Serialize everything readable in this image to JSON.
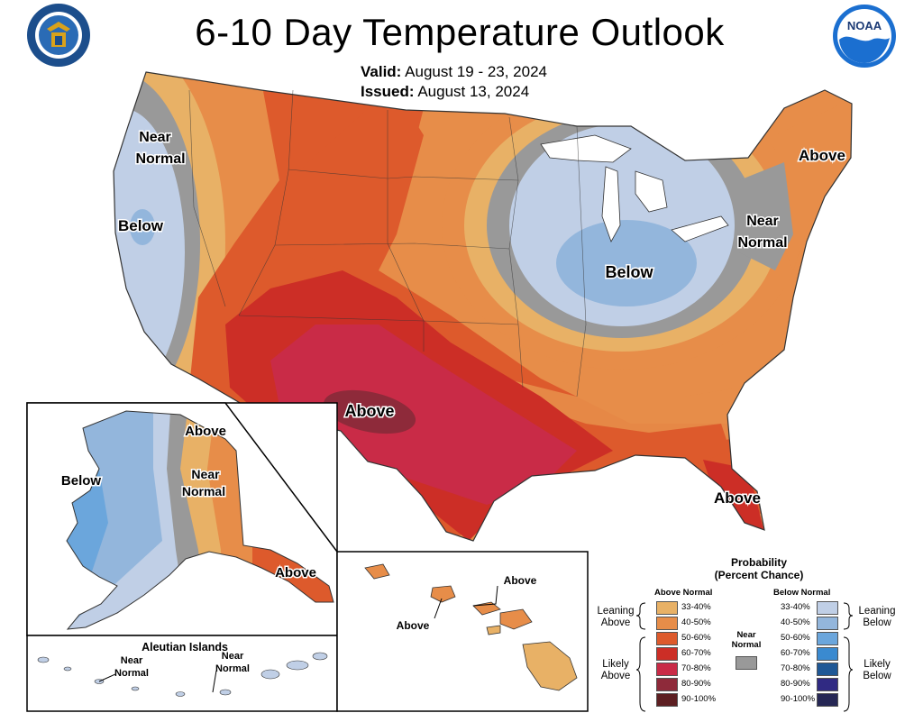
{
  "title": "6-10 Day Temperature Outlook",
  "valid_label": "Valid:",
  "valid_value": "August 19 - 23, 2024",
  "issued_label": "Issued:",
  "issued_value": "August 13, 2024",
  "logos": {
    "left": "doc-seal",
    "right": "noaa-logo",
    "left_text": "DEPARTMENT OF COMMERCE · UNITED STATES OF AMERICA",
    "right_text": "NOAA"
  },
  "map_labels": {
    "conus_near_normal_west": [
      "Near",
      "Normal"
    ],
    "conus_below_west": "Below",
    "conus_below_midwest": "Below",
    "conus_above_northeast": "Above",
    "conus_near_normal_east": [
      "Near",
      "Normal"
    ],
    "conus_above_southwest": "Above",
    "conus_above_florida": "Above",
    "alaska_below": "Below",
    "alaska_above_north": "Above",
    "alaska_near_normal": [
      "Near",
      "Normal"
    ],
    "alaska_above_south": "Above",
    "aleutian_title": "Aleutian Islands",
    "aleutian_near_normal_1": [
      "Near",
      "Normal"
    ],
    "aleutian_near_normal_2": [
      "Near",
      "Normal"
    ],
    "hawaii_above_1": "Above",
    "hawaii_above_2": "Above"
  },
  "legend": {
    "title": "Probability",
    "subtitle": "(Percent Chance)",
    "above_header": "Above Normal",
    "below_header": "Below Normal",
    "near_normal_label": [
      "Near",
      "Normal"
    ],
    "leaning_above": [
      "Leaning",
      "Above"
    ],
    "likely_above": [
      "Likely",
      "Above"
    ],
    "leaning_below": [
      "Leaning",
      "Below"
    ],
    "likely_below": [
      "Likely",
      "Below"
    ],
    "near_normal_color": "#999999",
    "above": [
      {
        "range": "33-40%",
        "color": "#e8b166"
      },
      {
        "range": "40-50%",
        "color": "#e78d49"
      },
      {
        "range": "50-60%",
        "color": "#dd5a2c"
      },
      {
        "range": "60-70%",
        "color": "#cc2e26"
      },
      {
        "range": "70-80%",
        "color": "#c92b47"
      },
      {
        "range": "80-90%",
        "color": "#8e2a3a"
      },
      {
        "range": "90-100%",
        "color": "#5d1f22"
      }
    ],
    "below": [
      {
        "range": "33-40%",
        "color": "#c0cfe6"
      },
      {
        "range": "40-50%",
        "color": "#93b6dc"
      },
      {
        "range": "50-60%",
        "color": "#6ba6dc"
      },
      {
        "range": "60-70%",
        "color": "#3a8ad0"
      },
      {
        "range": "70-80%",
        "color": "#1f5896"
      },
      {
        "range": "80-90%",
        "color": "#302a83"
      },
      {
        "range": "90-100%",
        "color": "#262755"
      }
    ]
  }
}
